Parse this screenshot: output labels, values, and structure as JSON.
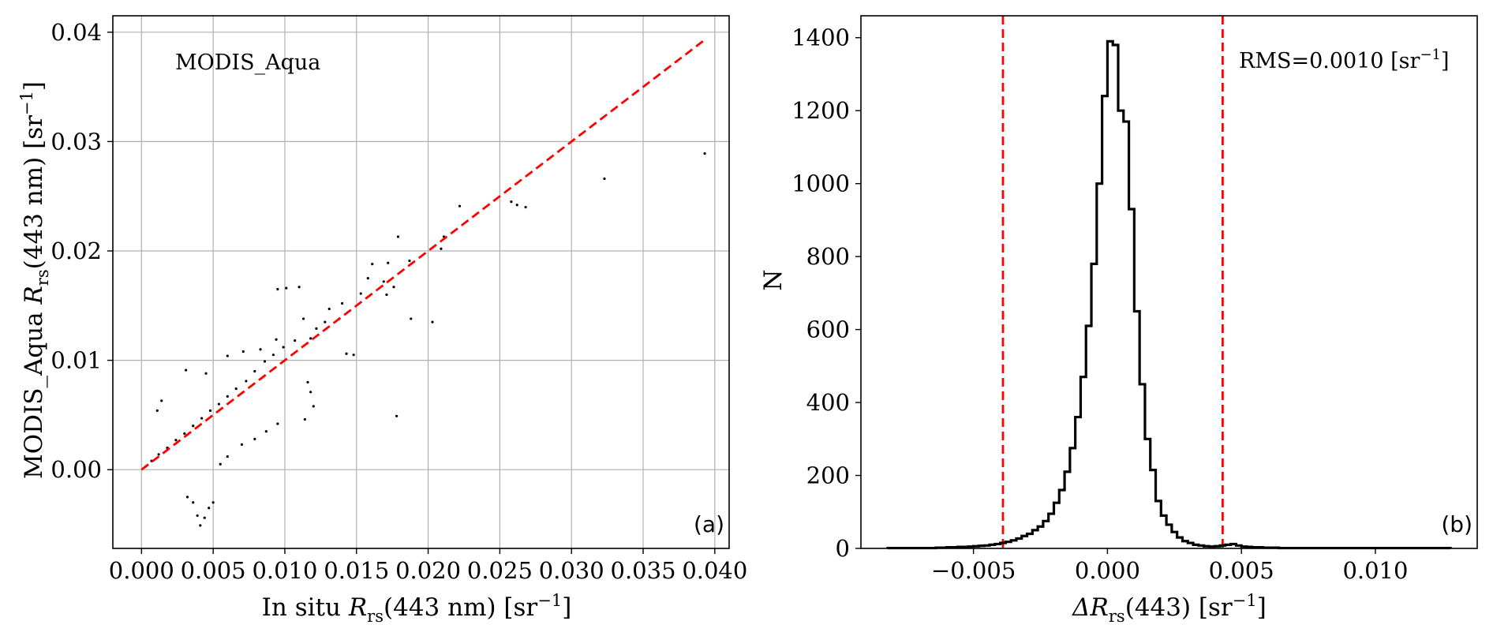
{
  "chart_data": [
    {
      "type": "scatter",
      "panel_label": "(a)",
      "annotation": "MODIS_Aqua",
      "ylabel": "MODIS_Aqua R_rs(443 nm) [sr^-1]",
      "xlabel": "In situ R_rs(443 nm) [sr^-1]",
      "xlim": [
        -0.002,
        0.041
      ],
      "ylim": [
        -0.0072,
        0.0415
      ],
      "x_ticks": [
        0.0,
        0.005,
        0.01,
        0.015,
        0.02,
        0.025,
        0.03,
        0.035,
        0.04
      ],
      "x_tick_labels": [
        "0.000",
        "0.005",
        "0.010",
        "0.015",
        "0.020",
        "0.025",
        "0.030",
        "0.035",
        "0.040"
      ],
      "y_ticks": [
        0.0,
        0.01,
        0.02,
        0.03,
        0.04
      ],
      "y_tick_labels": [
        "0.00",
        "0.01",
        "0.02",
        "0.03",
        "0.04"
      ],
      "grid": true,
      "point_color": "#000000",
      "series": [
        {
          "points": [
            [
              0.0393,
              0.0289
            ],
            [
              0.0323,
              0.0266
            ],
            [
              0.0268,
              0.024
            ],
            [
              0.0258,
              0.0245
            ],
            [
              0.0262,
              0.0242
            ],
            [
              0.0222,
              0.0241
            ],
            [
              0.0211,
              0.0213
            ],
            [
              0.0209,
              0.0202
            ],
            [
              0.0203,
              0.0135
            ],
            [
              0.0187,
              0.0191
            ],
            [
              0.0179,
              0.0213
            ],
            [
              0.0172,
              0.0189
            ],
            [
              0.0169,
              0.0172
            ],
            [
              0.0161,
              0.0188
            ],
            [
              0.0158,
              0.0175
            ],
            [
              0.0143,
              0.0106
            ],
            [
              0.0148,
              0.0105
            ],
            [
              0.0188,
              0.0138
            ],
            [
              0.011,
              0.0167
            ],
            [
              0.0101,
              0.0166
            ],
            [
              0.0095,
              0.0165
            ],
            [
              0.0178,
              0.0049
            ],
            [
              0.0176,
              0.0167
            ],
            [
              0.0171,
              0.016
            ],
            [
              0.0153,
              0.0161
            ],
            [
              0.014,
              0.0152
            ],
            [
              0.0131,
              0.0147
            ],
            [
              0.0138,
              0.0138
            ],
            [
              0.0128,
              0.0135
            ],
            [
              0.0122,
              0.0129
            ],
            [
              0.0113,
              0.0138
            ],
            [
              0.0118,
              0.012
            ],
            [
              0.0107,
              0.0118
            ],
            [
              0.0099,
              0.0112
            ],
            [
              0.0092,
              0.0105
            ],
            [
              0.0086,
              0.0099
            ],
            [
              0.0079,
              0.009
            ],
            [
              0.0073,
              0.0081
            ],
            [
              0.0066,
              0.0074
            ],
            [
              0.006,
              0.0067
            ],
            [
              0.0054,
              0.006
            ],
            [
              0.0048,
              0.0054
            ],
            [
              0.0042,
              0.0047
            ],
            [
              0.0036,
              0.004
            ],
            [
              0.003,
              0.0033
            ],
            [
              0.0024,
              0.0027
            ],
            [
              0.0018,
              0.002
            ],
            [
              0.0012,
              0.0014
            ],
            [
              0.0007,
              0.0008
            ],
            [
              0.0003,
              0.0003
            ],
            [
              0.0041,
              -0.0051
            ],
            [
              0.0044,
              -0.0044
            ],
            [
              0.0047,
              -0.0035
            ],
            [
              0.0039,
              -0.0042
            ],
            [
              0.0036,
              -0.003
            ],
            [
              0.0032,
              -0.0025
            ],
            [
              0.005,
              -0.003
            ],
            [
              0.0011,
              0.0054
            ],
            [
              0.0014,
              0.0063
            ],
            [
              0.0031,
              0.0091
            ],
            [
              0.0045,
              0.0088
            ],
            [
              0.006,
              0.0104
            ],
            [
              0.0071,
              0.0108
            ],
            [
              0.0083,
              0.011
            ],
            [
              0.0094,
              0.0119
            ],
            [
              0.0116,
              0.008
            ],
            [
              0.0118,
              0.0071
            ],
            [
              0.012,
              0.0058
            ],
            [
              0.0114,
              0.0046
            ],
            [
              0.0095,
              0.0042
            ],
            [
              0.0087,
              0.0035
            ],
            [
              0.0079,
              0.0028
            ],
            [
              0.007,
              0.0023
            ],
            [
              0.006,
              0.0012
            ],
            [
              0.0055,
              0.0005
            ]
          ]
        }
      ],
      "fit_line": {
        "x": [
          0.0,
          0.0393
        ],
        "y": [
          0.0,
          0.0393
        ],
        "color": "#ff0000",
        "style": "dashed"
      }
    },
    {
      "type": "histogram",
      "panel_label": "(b)",
      "annotation": "RMS=0.0010 [sr^-1]",
      "ylabel": "N",
      "xlabel": "ΔR_rs(443) [sr^-1]",
      "xlim": [
        -0.0092,
        0.0138
      ],
      "ylim": [
        0,
        1460
      ],
      "x_ticks": [
        -0.005,
        0.0,
        0.005,
        0.01
      ],
      "x_tick_labels": [
        "−0.005",
        "0.000",
        "0.005",
        "0.010"
      ],
      "y_ticks": [
        0,
        200,
        400,
        600,
        800,
        1000,
        1200,
        1400
      ],
      "y_tick_labels": [
        "0",
        "200",
        "400",
        "600",
        "800",
        "1000",
        "1200",
        "1400"
      ],
      "grid": false,
      "line_color": "#000000",
      "bin_edges": [
        -0.0082,
        -0.008,
        -0.0078,
        -0.0076,
        -0.0074,
        -0.0072,
        -0.007,
        -0.0068,
        -0.0066,
        -0.0064,
        -0.0062,
        -0.006,
        -0.0058,
        -0.0056,
        -0.0054,
        -0.0052,
        -0.005,
        -0.0048,
        -0.0046,
        -0.0044,
        -0.0042,
        -0.004,
        -0.0038,
        -0.0036,
        -0.0034,
        -0.0032,
        -0.003,
        -0.0028,
        -0.0026,
        -0.0024,
        -0.0022,
        -0.002,
        -0.0018,
        -0.0016,
        -0.0014,
        -0.0012,
        -0.001,
        -0.0008,
        -0.0006,
        -0.0004,
        -0.0002,
        0.0,
        0.0002,
        0.0004,
        0.0006,
        0.0008,
        0.001,
        0.0012,
        0.0014,
        0.0016,
        0.0018,
        0.002,
        0.0022,
        0.0024,
        0.0026,
        0.0028,
        0.003,
        0.0032,
        0.0034,
        0.0036,
        0.0038,
        0.004,
        0.0042,
        0.0044,
        0.0046,
        0.0048,
        0.005,
        0.0052,
        0.0054,
        0.0056,
        0.0058,
        0.006,
        0.0062,
        0.0064,
        0.0066,
        0.0068,
        0.007,
        0.0072,
        0.0074,
        0.0076,
        0.0078,
        0.008,
        0.0082,
        0.0084,
        0.0086,
        0.0088,
        0.009,
        0.0092,
        0.0094,
        0.0096,
        0.0098,
        0.01,
        0.0102,
        0.0104,
        0.0106,
        0.0108,
        0.011,
        0.0112,
        0.0114,
        0.0116,
        0.0118,
        0.012,
        0.0122,
        0.0124,
        0.0126,
        0.0128
      ],
      "counts": [
        1,
        1,
        1,
        1,
        1,
        1,
        1,
        1,
        1,
        2,
        2,
        3,
        3,
        4,
        4,
        5,
        6,
        7,
        8,
        10,
        12,
        15,
        18,
        22,
        27,
        34,
        40,
        50,
        60,
        75,
        95,
        125,
        160,
        210,
        275,
        360,
        470,
        610,
        780,
        1000,
        1240,
        1390,
        1380,
        1200,
        1170,
        930,
        650,
        450,
        300,
        215,
        130,
        90,
        65,
        45,
        30,
        20,
        15,
        10,
        8,
        6,
        5,
        6,
        8,
        10,
        12,
        8,
        5,
        4,
        3,
        3,
        2,
        2,
        2,
        1,
        1,
        1,
        1,
        1,
        1,
        1,
        1,
        1,
        1,
        1,
        1,
        1,
        1,
        1,
        1,
        1,
        1,
        1,
        1,
        1,
        1,
        1,
        1,
        1,
        1,
        1,
        1,
        1,
        1,
        1,
        1
      ],
      "vlines": [
        {
          "x": -0.0039,
          "color": "#ff0000",
          "style": "dashed"
        },
        {
          "x": 0.0043,
          "color": "#ff0000",
          "style": "dashed"
        }
      ]
    }
  ]
}
